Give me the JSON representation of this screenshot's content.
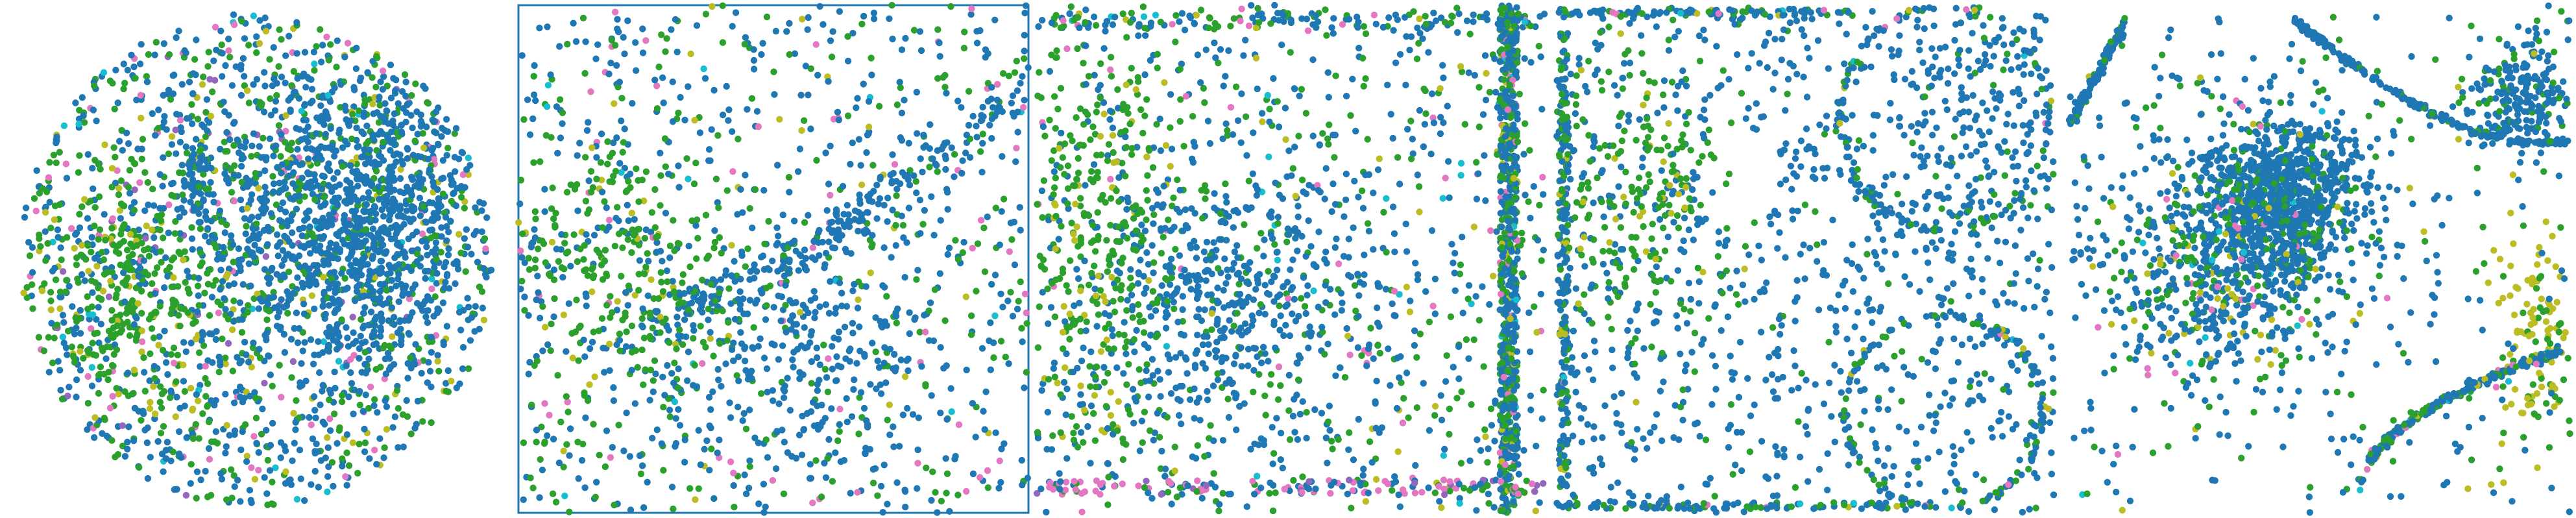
{
  "chart_data": {
    "type": "scatter",
    "title": "",
    "xlabel": "",
    "ylabel": "",
    "legend": "none",
    "grid": false,
    "palette": {
      "blue": "#1f77b4",
      "green": "#2ca02c",
      "pink": "#e377c2",
      "olive": "#bcbd22",
      "purple": "#9467bd",
      "cyan": "#17becf"
    },
    "color_weights": {
      "panel_1": {
        "blue": 0.52,
        "green": 0.3,
        "olive": 0.07,
        "pink": 0.06,
        "purple": 0.03,
        "cyan": 0.02
      },
      "panel_2": {
        "blue": 0.6,
        "green": 0.28,
        "pink": 0.06,
        "olive": 0.04,
        "cyan": 0.02
      },
      "panel_3": {
        "blue": 0.55,
        "green": 0.32,
        "pink": 0.06,
        "olive": 0.05,
        "cyan": 0.02
      },
      "panel_4": {
        "blue": 0.62,
        "green": 0.28,
        "olive": 0.05,
        "pink": 0.03,
        "cyan": 0.02
      },
      "panel_5": {
        "blue": 0.66,
        "green": 0.22,
        "olive": 0.06,
        "pink": 0.04,
        "cyan": 0.02
      }
    },
    "panels": [
      {
        "id": "panel-1",
        "shape": "disk",
        "x_range": [
          -1,
          1
        ],
        "y_range": [
          -1,
          1
        ],
        "clusters": [
          {
            "kind": "disk",
            "cx": 0.0,
            "cy": 0.0,
            "r": 1.0,
            "n": 1500,
            "colors": "mixed"
          },
          {
            "kind": "gauss",
            "cx": 0.42,
            "cy": 0.15,
            "sx": 0.28,
            "sy": 0.32,
            "n": 1100,
            "colors": "blue"
          },
          {
            "kind": "gauss",
            "cx": -0.25,
            "cy": 0.35,
            "sx": 0.04,
            "sy": 0.1,
            "n": 60,
            "colors": "blue"
          },
          {
            "kind": "gauss",
            "cx": -0.55,
            "cy": -0.1,
            "sx": 0.2,
            "sy": 0.25,
            "n": 300,
            "colors": "green"
          }
        ]
      },
      {
        "id": "panel-2",
        "shape": "square-frame",
        "x_range": [
          0,
          1
        ],
        "y_range": [
          0,
          1
        ],
        "clusters": [
          {
            "kind": "uniform",
            "n": 900,
            "colors": "mixed"
          },
          {
            "kind": "curve",
            "from": [
              0.25,
              0.38
            ],
            "to": [
              1.0,
              0.83
            ],
            "n": 260,
            "spread": 0.025,
            "colors": "blue"
          },
          {
            "kind": "gauss",
            "cx": 0.22,
            "cy": 0.48,
            "sx": 0.12,
            "sy": 0.12,
            "n": 240,
            "colors": "green"
          },
          {
            "kind": "gauss",
            "cx": 0.55,
            "cy": 0.3,
            "sx": 0.12,
            "sy": 0.12,
            "n": 220,
            "colors": "blue"
          }
        ]
      },
      {
        "id": "panel-3",
        "shape": "rectangle-with-bar",
        "x_range": [
          0,
          1
        ],
        "y_range": [
          0,
          1
        ],
        "clusters": [
          {
            "kind": "uniform",
            "n": 900,
            "colors": "mixed"
          },
          {
            "kind": "gauss",
            "cx": 0.37,
            "cy": 0.42,
            "sx": 0.14,
            "sy": 0.12,
            "n": 420,
            "colors": "blue"
          },
          {
            "kind": "gauss",
            "cx": 0.12,
            "cy": 0.55,
            "sx": 0.08,
            "sy": 0.2,
            "n": 300,
            "colors": "green"
          },
          {
            "kind": "vbar",
            "x": 0.93,
            "w": 0.035,
            "n": 700,
            "colors": "mixed"
          },
          {
            "kind": "hbar",
            "y": 0.97,
            "h": 0.03,
            "n": 120,
            "colors": "mixed"
          },
          {
            "kind": "hbar",
            "y": 0.05,
            "h": 0.03,
            "n": 140,
            "colors": "pinkish"
          }
        ]
      },
      {
        "id": "panel-4",
        "shape": "rounded-rectangle",
        "x_range": [
          0,
          1
        ],
        "y_range": [
          0,
          1
        ],
        "clusters": [
          {
            "kind": "roundrect",
            "n": 1000,
            "colors": "blue"
          },
          {
            "kind": "outline",
            "n": 700,
            "colors": "mixed"
          },
          {
            "kind": "gauss",
            "cx": 0.15,
            "cy": 0.6,
            "sx": 0.1,
            "sy": 0.15,
            "n": 250,
            "colors": "green"
          },
          {
            "kind": "gauss",
            "cx": 0.8,
            "cy": 0.75,
            "sx": 0.13,
            "sy": 0.13,
            "n": 180,
            "colors": "blue"
          }
        ]
      },
      {
        "id": "panel-5",
        "shape": "cluster-with-arcs",
        "x_range": [
          0,
          1
        ],
        "y_range": [
          0,
          1
        ],
        "clusters": [
          {
            "kind": "gauss",
            "cx": 0.42,
            "cy": 0.62,
            "sx": 0.08,
            "sy": 0.08,
            "n": 900,
            "colors": "blue"
          },
          {
            "kind": "gauss",
            "cx": 0.3,
            "cy": 0.48,
            "sx": 0.12,
            "sy": 0.12,
            "n": 600,
            "colors": "mixed"
          },
          {
            "kind": "gauss",
            "cx": 0.9,
            "cy": 0.82,
            "sx": 0.05,
            "sy": 0.05,
            "n": 220,
            "colors": "blue"
          },
          {
            "kind": "gauss",
            "cx": 0.93,
            "cy": 0.35,
            "sx": 0.04,
            "sy": 0.1,
            "n": 120,
            "colors": "olive"
          },
          {
            "kind": "uniform",
            "n": 350,
            "colors": "mixed"
          },
          {
            "kind": "arc",
            "id": "arc-top",
            "n": 200,
            "colors": "blue"
          },
          {
            "kind": "arc",
            "id": "arc-bottom",
            "n": 260,
            "colors": "mixed"
          },
          {
            "kind": "arc",
            "id": "arc-topleft",
            "n": 120,
            "colors": "blue"
          }
        ]
      }
    ]
  }
}
